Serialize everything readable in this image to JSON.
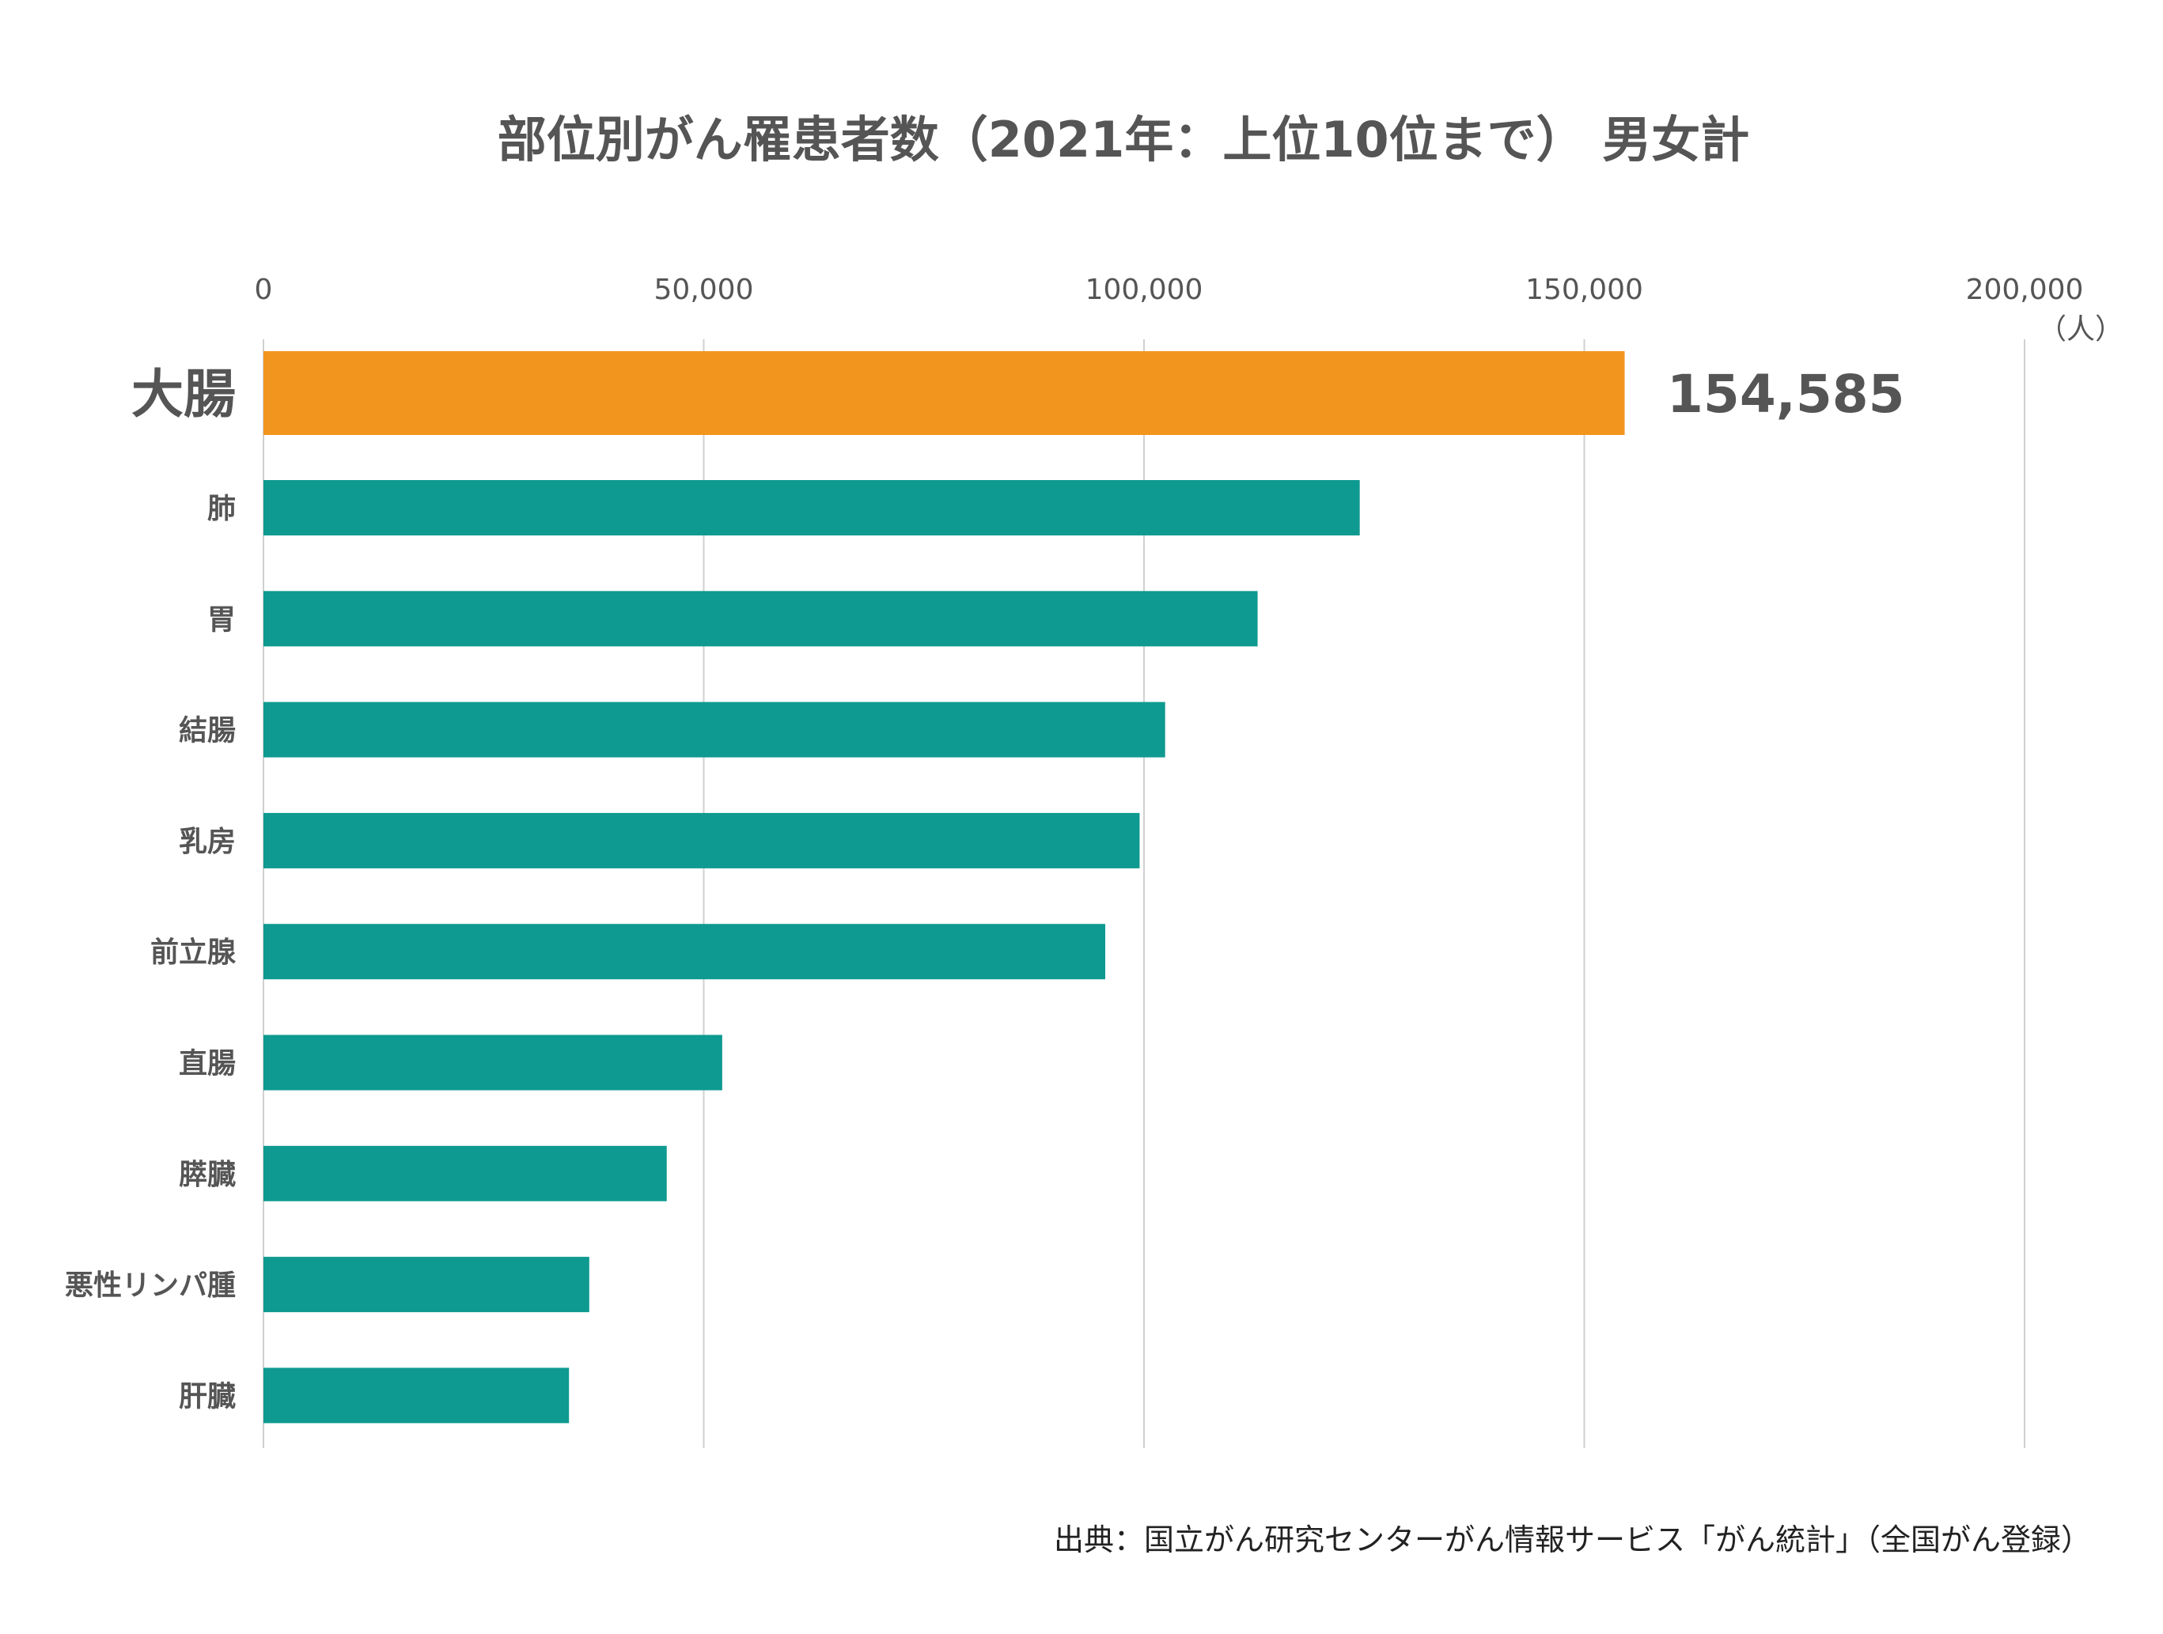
{
  "chart_data": {
    "type": "bar",
    "orientation": "horizontal",
    "title": "部位別がん罹患者数（2021年：上位10位まで） 男女計",
    "unit_label": "（人）",
    "categories": [
      "大腸",
      "肺",
      "胃",
      "結腸",
      "乳房",
      "前立腺",
      "直腸",
      "膵臓",
      "悪性リンパ腫",
      "肝臓"
    ],
    "values": [
      154585,
      124500,
      112900,
      102400,
      99500,
      95600,
      52100,
      45800,
      37000,
      34700
    ],
    "highlight_index": 0,
    "highlight_value_label": "154,585",
    "xlim": [
      0,
      200000
    ],
    "xticks": [
      0,
      50000,
      100000,
      150000,
      200000
    ],
    "xtick_labels": [
      "0",
      "50,000",
      "100,000",
      "150,000",
      "200,000"
    ],
    "xaxis_position": "top",
    "grid": true,
    "colors": {
      "highlight": "#F2951F",
      "bar": "#0E9A90",
      "grid": "#D0D0D0",
      "text": "#555555"
    },
    "source": "出典：国立がん研究センターがん情報サービス「がん統計」（全国がん登録）"
  }
}
